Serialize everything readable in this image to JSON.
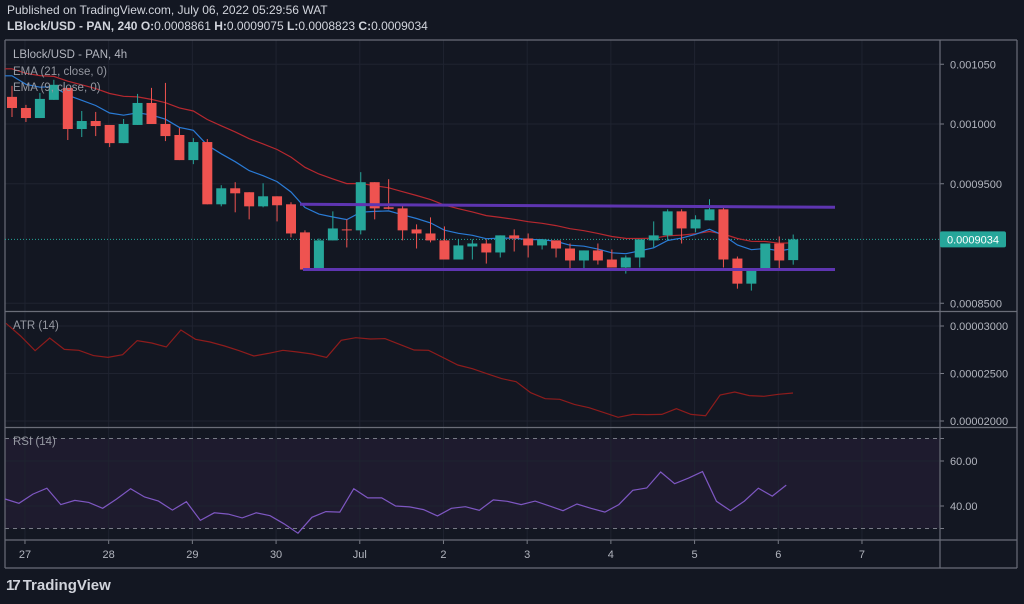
{
  "header": {
    "published": "Published on TradingView.com, July 06, 2022 05:29:56 WAT",
    "symbol_interval": "LBlock/USD - PAN, 240",
    "ohlc": [
      {
        "key": "O:",
        "value": "0.0008861"
      },
      {
        "key": "H:",
        "value": "0.0009075"
      },
      {
        "key": "L:",
        "value": "0.0008823"
      },
      {
        "key": "C:",
        "value": "0.0009034"
      }
    ]
  },
  "legend": {
    "symbol": "LBlock/USD - PAN, 4h",
    "ema21": "EMA (21, close, 0)",
    "ema9": "EMA (9, close, 0)",
    "atr": "ATR (14)",
    "rsi": "RSI (14)"
  },
  "logo": "TradingView",
  "colors": {
    "background": "#131722",
    "up": "#26a69a",
    "down": "#ef5350",
    "ema21": "#b7282f",
    "ema9": "#2a7bd6",
    "atr": "#8e1c1c",
    "rsi": "#7e57c2",
    "range_lines": "#5e35b1",
    "last_price": "#26a69a"
  },
  "chart_data": [
    {
      "type": "candlestick",
      "interval": "4h",
      "ylim": [
        0.00084,
        0.00107
      ],
      "y_ticks": [
        "0.001050",
        "0.001000",
        "0.0009500",
        "0.0008500"
      ],
      "y_tick_values": [
        0.00105,
        0.001,
        0.00095,
        0.00085
      ],
      "x_ticks": [
        "27",
        "28",
        "29",
        "30",
        "Jul",
        "2",
        "3",
        "4",
        "5",
        "6",
        "7"
      ],
      "grid": true,
      "last_price": "0.0009034",
      "last_price_value": 0.0009034,
      "ohlc": [
        [
          0.0010227,
          0.0010319,
          0.0010059,
          0.0010134
        ],
        [
          0.0010134,
          0.001016,
          0.0010017,
          0.001005
        ],
        [
          0.001005,
          0.001026,
          0.001005,
          0.001021
        ],
        [
          0.0010202,
          0.001037,
          0.0010202,
          0.0010328
        ],
        [
          0.0010302,
          0.0010302,
          0.0009866,
          0.0009958
        ],
        [
          0.0009958,
          0.0010109,
          0.0009891,
          0.0010025
        ],
        [
          0.0010025,
          0.0010101,
          0.0009899,
          0.0009983
        ],
        [
          0.0009992,
          0.0009992,
          0.0009807,
          0.000984
        ],
        [
          0.000984,
          0.0010042,
          0.000984,
          0.001
        ],
        [
          0.0009992,
          0.0010252,
          0.0009992,
          0.0010176
        ],
        [
          0.0010176,
          0.0010302,
          0.001,
          0.001
        ],
        [
          0.001,
          0.0010344,
          0.0009857,
          0.0009899
        ],
        [
          0.0009908,
          0.0009966,
          0.0009698,
          0.0009698
        ],
        [
          0.0009698,
          0.0009882,
          0.0009664,
          0.0009849
        ],
        [
          0.0009849,
          0.0009874,
          0.0009328,
          0.0009328
        ],
        [
          0.0009328,
          0.0009488,
          0.0009311,
          0.0009462
        ],
        [
          0.0009462,
          0.0009513,
          0.0009261,
          0.000942
        ],
        [
          0.0009429,
          0.0009429,
          0.0009202,
          0.0009311
        ],
        [
          0.0009311,
          0.0009504,
          0.0009303,
          0.0009395
        ],
        [
          0.0009395,
          0.0009395,
          0.0009185,
          0.000932
        ],
        [
          0.0009328,
          0.0009345,
          0.0009051,
          0.0009084
        ],
        [
          0.0009093,
          0.000911,
          0.0008782,
          0.0008782
        ],
        [
          0.0008782,
          0.0009042,
          0.0008782,
          0.0009026
        ],
        [
          0.0009026,
          0.0009269,
          0.0009026,
          0.0009126
        ],
        [
          0.0009118,
          0.0009202,
          0.0008967,
          0.000911
        ],
        [
          0.000911,
          0.0009597,
          0.0009076,
          0.0009513
        ],
        [
          0.0009513,
          0.0009513,
          0.0009202,
          0.0009294
        ],
        [
          0.0009303,
          0.0009538,
          0.0009286,
          0.000929
        ],
        [
          0.0009294,
          0.000932,
          0.0009026,
          0.000911
        ],
        [
          0.0009118,
          0.000916,
          0.0008958,
          0.0009084
        ],
        [
          0.0009084,
          0.0009219,
          0.0009009,
          0.0009026
        ],
        [
          0.0009026,
          0.0009143,
          0.0008866,
          0.0008866
        ],
        [
          0.0008866,
          0.0009034,
          0.0008866,
          0.0008984
        ],
        [
          0.0008975,
          0.0009034,
          0.0008866,
          0.0009
        ],
        [
          0.0009,
          0.0009034,
          0.0008832,
          0.0008925
        ],
        [
          0.0008925,
          0.0009068,
          0.0008883,
          0.0009068
        ],
        [
          0.0009068,
          0.0009118,
          0.0008933,
          0.0009042
        ],
        [
          0.0009042,
          0.0009084,
          0.0008883,
          0.0008984
        ],
        [
          0.0008984,
          0.0009034,
          0.000895,
          0.0009034
        ],
        [
          0.0009026,
          0.0009026,
          0.0008883,
          0.0008958
        ],
        [
          0.0008958,
          0.0009,
          0.0008782,
          0.0008858
        ],
        [
          0.0008858,
          0.0008942,
          0.000879,
          0.0008942
        ],
        [
          0.0008942,
          0.0009,
          0.0008824,
          0.0008858
        ],
        [
          0.0008866,
          0.000895,
          0.0008799,
          0.0008799
        ],
        [
          0.0008799,
          0.00089,
          0.0008748,
          0.0008883
        ],
        [
          0.0008883,
          0.0009034,
          0.0008799,
          0.0009034
        ],
        [
          0.0009026,
          0.0009185,
          0.0008967,
          0.0009068
        ],
        [
          0.0009068,
          0.0009286,
          0.0009026,
          0.0009269
        ],
        [
          0.0009269,
          0.0009286,
          0.0009,
          0.0009126
        ],
        [
          0.0009126,
          0.0009236,
          0.0009093,
          0.0009202
        ],
        [
          0.0009194,
          0.000937,
          0.0009194,
          0.0009286
        ],
        [
          0.0009286,
          0.0009303,
          0.0008799,
          0.0008866
        ],
        [
          0.0008874,
          0.0008891,
          0.0008622,
          0.0008664
        ],
        [
          0.0008664,
          0.000879,
          0.0008606,
          0.000879
        ],
        [
          0.000879,
          0.0009,
          0.000879,
          0.0009
        ],
        [
          0.0009,
          0.0009059,
          0.000879,
          0.0008858
        ],
        [
          0.0008861,
          0.0009075,
          0.0008823,
          0.0009034
        ]
      ],
      "ema": [
        {
          "name": "EMA (21, close, 0)",
          "period": 21,
          "first_value": 0.0010462
        },
        {
          "name": "EMA (9, close, 0)",
          "period": 9,
          "first_value": 0.0010403
        }
      ],
      "range_lines": {
        "resistance": [
          0.0009328,
          0.0009303
        ],
        "support": [
          0.0008782,
          0.0008782
        ]
      }
    },
    {
      "type": "line",
      "name": "ATR (14)",
      "y_ticks": [
        "0.00003000",
        "0.00002500",
        "0.00002000"
      ],
      "y_tick_values": [
        3e-05,
        2.5e-05,
        2e-05
      ],
      "values": [
        3.028e-05,
        2.895e-05,
        2.74e-05,
        2.874e-05,
        2.754e-05,
        2.744e-05,
        2.688e-05,
        2.67e-05,
        2.698e-05,
        2.846e-05,
        2.821e-05,
        2.779e-05,
        2.958e-05,
        2.86e-05,
        2.832e-05,
        2.789e-05,
        2.74e-05,
        2.684e-05,
        2.712e-05,
        2.744e-05,
        2.726e-05,
        2.705e-05,
        2.67e-05,
        2.849e-05,
        2.877e-05,
        2.863e-05,
        2.867e-05,
        2.807e-05,
        2.747e-05,
        2.744e-05,
        2.667e-05,
        2.589e-05,
        2.551e-05,
        2.498e-05,
        2.446e-05,
        2.414e-05,
        2.298e-05,
        2.235e-05,
        2.228e-05,
        2.175e-05,
        2.14e-05,
        2.091e-05,
        2.039e-05,
        2.07e-05,
        2.067e-05,
        2.07e-05,
        2.13e-05,
        2.07e-05,
        2.056e-05,
        2.274e-05,
        2.305e-05,
        2.267e-05,
        2.26e-05,
        2.281e-05,
        2.295e-05
      ]
    },
    {
      "type": "line",
      "name": "RSI (14)",
      "y_ticks": [
        "60.00",
        "40.00"
      ],
      "y_tick_values": [
        60,
        40
      ],
      "bands": [
        70,
        30
      ],
      "values": [
        43.1,
        41.2,
        45.3,
        47.9,
        40.6,
        42.5,
        41.6,
        39.0,
        43.1,
        47.7,
        44.0,
        42.2,
        38.2,
        41.9,
        33.6,
        37.0,
        36.4,
        34.7,
        37.0,
        35.7,
        32.1,
        27.9,
        35.0,
        37.5,
        37.3,
        47.7,
        43.6,
        43.6,
        40.0,
        39.6,
        38.4,
        35.6,
        39.0,
        39.7,
        38.1,
        42.7,
        42.1,
        40.6,
        42.2,
        40.1,
        37.9,
        40.9,
        39.0,
        37.3,
        40.6,
        47.0,
        48.0,
        55.1,
        49.9,
        52.4,
        55.3,
        42.1,
        37.9,
        42.2,
        47.9,
        44.4,
        49.3
      ]
    }
  ]
}
